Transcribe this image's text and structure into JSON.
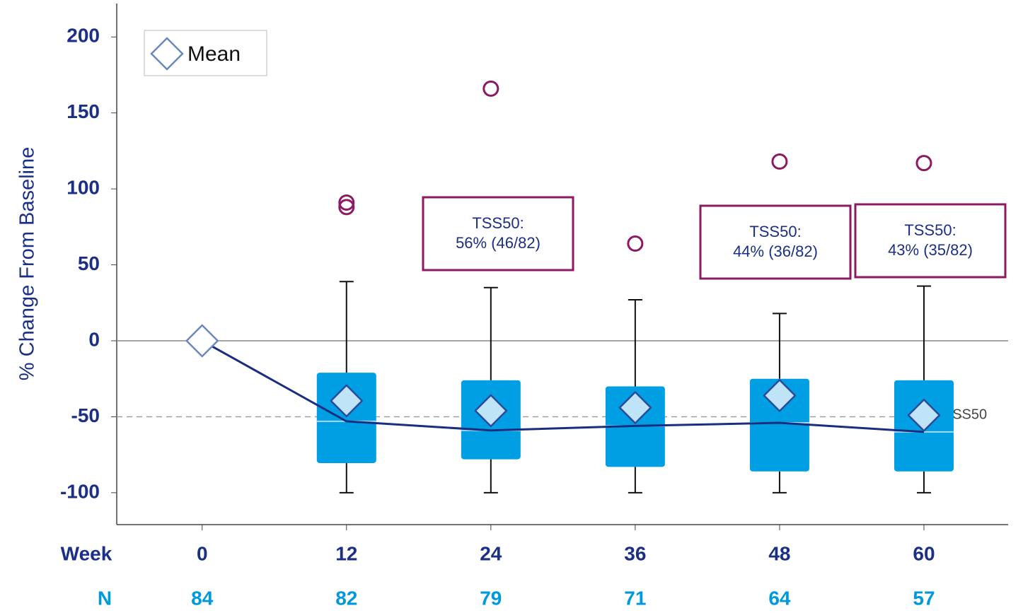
{
  "chart_data": {
    "type": "box",
    "y_label": "% Change From Baseline",
    "x_label": "Week",
    "n_label": "N",
    "legend": {
      "label": "Mean",
      "corner": "top-left"
    },
    "x": [
      0,
      12,
      24,
      36,
      48,
      60
    ],
    "xlim": [
      -7.1,
      67
    ],
    "xticks": [
      0,
      12,
      24,
      36,
      48,
      60
    ],
    "ylim": [
      -121,
      222
    ],
    "yticks": [
      -100,
      -50,
      0,
      50,
      100,
      150,
      200
    ],
    "n": [
      84,
      82,
      79,
      71,
      64,
      57
    ],
    "whisker_low": [
      null,
      -100,
      -100,
      -100,
      -100,
      -100
    ],
    "q1": [
      null,
      -80.5,
      -78,
      -83,
      -86,
      -86
    ],
    "median": [
      0,
      -53,
      -59,
      -56,
      -54,
      -60
    ],
    "q3": [
      null,
      -21,
      -26,
      -30,
      -25,
      -26
    ],
    "whisker_high": [
      null,
      39,
      35,
      27,
      18,
      36
    ],
    "mean": [
      0,
      -39.5,
      -46,
      -44,
      -36,
      -49
    ],
    "outliers": [
      [],
      [
        91,
        88
      ],
      [
        166
      ],
      [
        64
      ],
      [
        118
      ],
      [
        117
      ]
    ],
    "box_color": "#009fe3",
    "line_color": "#1a2e80",
    "outlier_color": "#8c1a63",
    "reference_line": {
      "value": -50,
      "label": "TSS50"
    },
    "annotations": [
      {
        "lines": [
          "TSS50:",
          "56% (46/82)"
        ]
      },
      {
        "lines": [
          "TSS50:",
          "44% (36/82)"
        ]
      },
      {
        "lines": [
          "TSS50:",
          "43% (35/82)"
        ]
      }
    ]
  }
}
